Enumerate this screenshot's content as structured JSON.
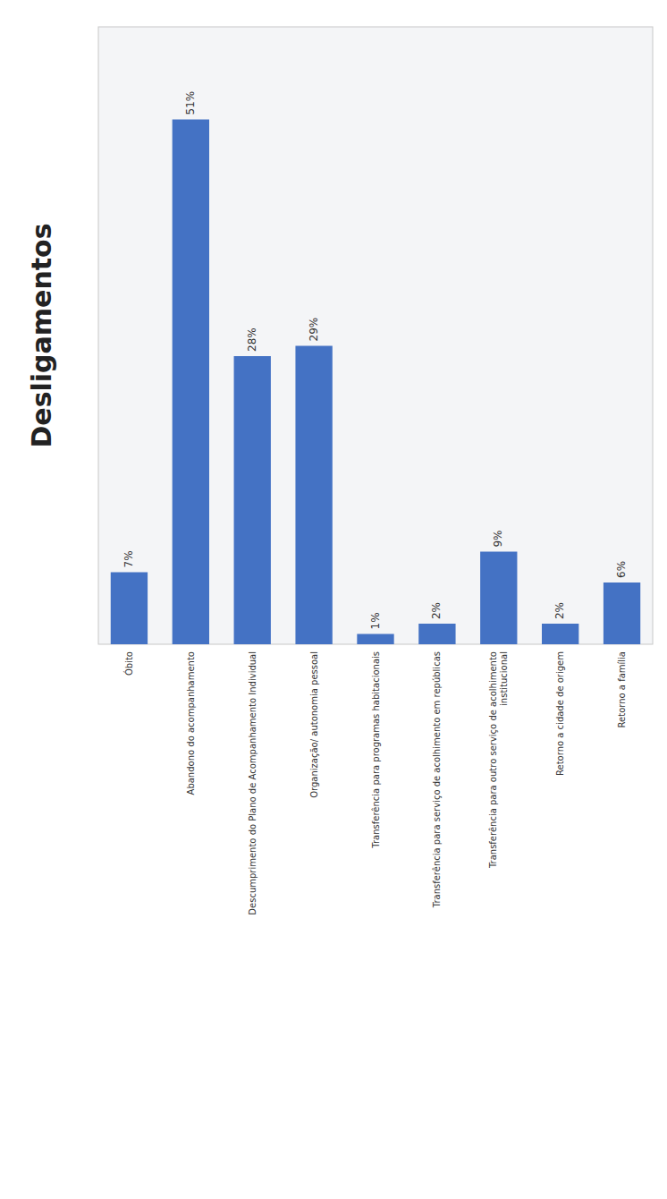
{
  "chart_data": {
    "type": "bar",
    "title": "Desligamentos",
    "categories": [
      "Óbito",
      "Abandono do acompanhamento",
      "Descumprimento do Plano de Acompanhamento Individual",
      "Organização/ autonomia pessoal",
      "Transferência para programas habitacionais",
      "Transferência para serviço de acolhimento em repúblicas",
      "Transferência para outro serviço de acolhimento\ninstitucional",
      "Retorno a cidade de origem",
      "Retorno a família"
    ],
    "values": [
      7,
      51,
      28,
      29,
      1,
      2,
      9,
      2,
      6
    ],
    "value_labels": [
      "7%",
      "51%",
      "28%",
      "29%",
      "1%",
      "2%",
      "9%",
      "2%",
      "6%"
    ],
    "color": "#4472C4",
    "ylim": [
      0,
      60
    ],
    "grid": false,
    "data_labels": true,
    "tick_labels": "x"
  }
}
